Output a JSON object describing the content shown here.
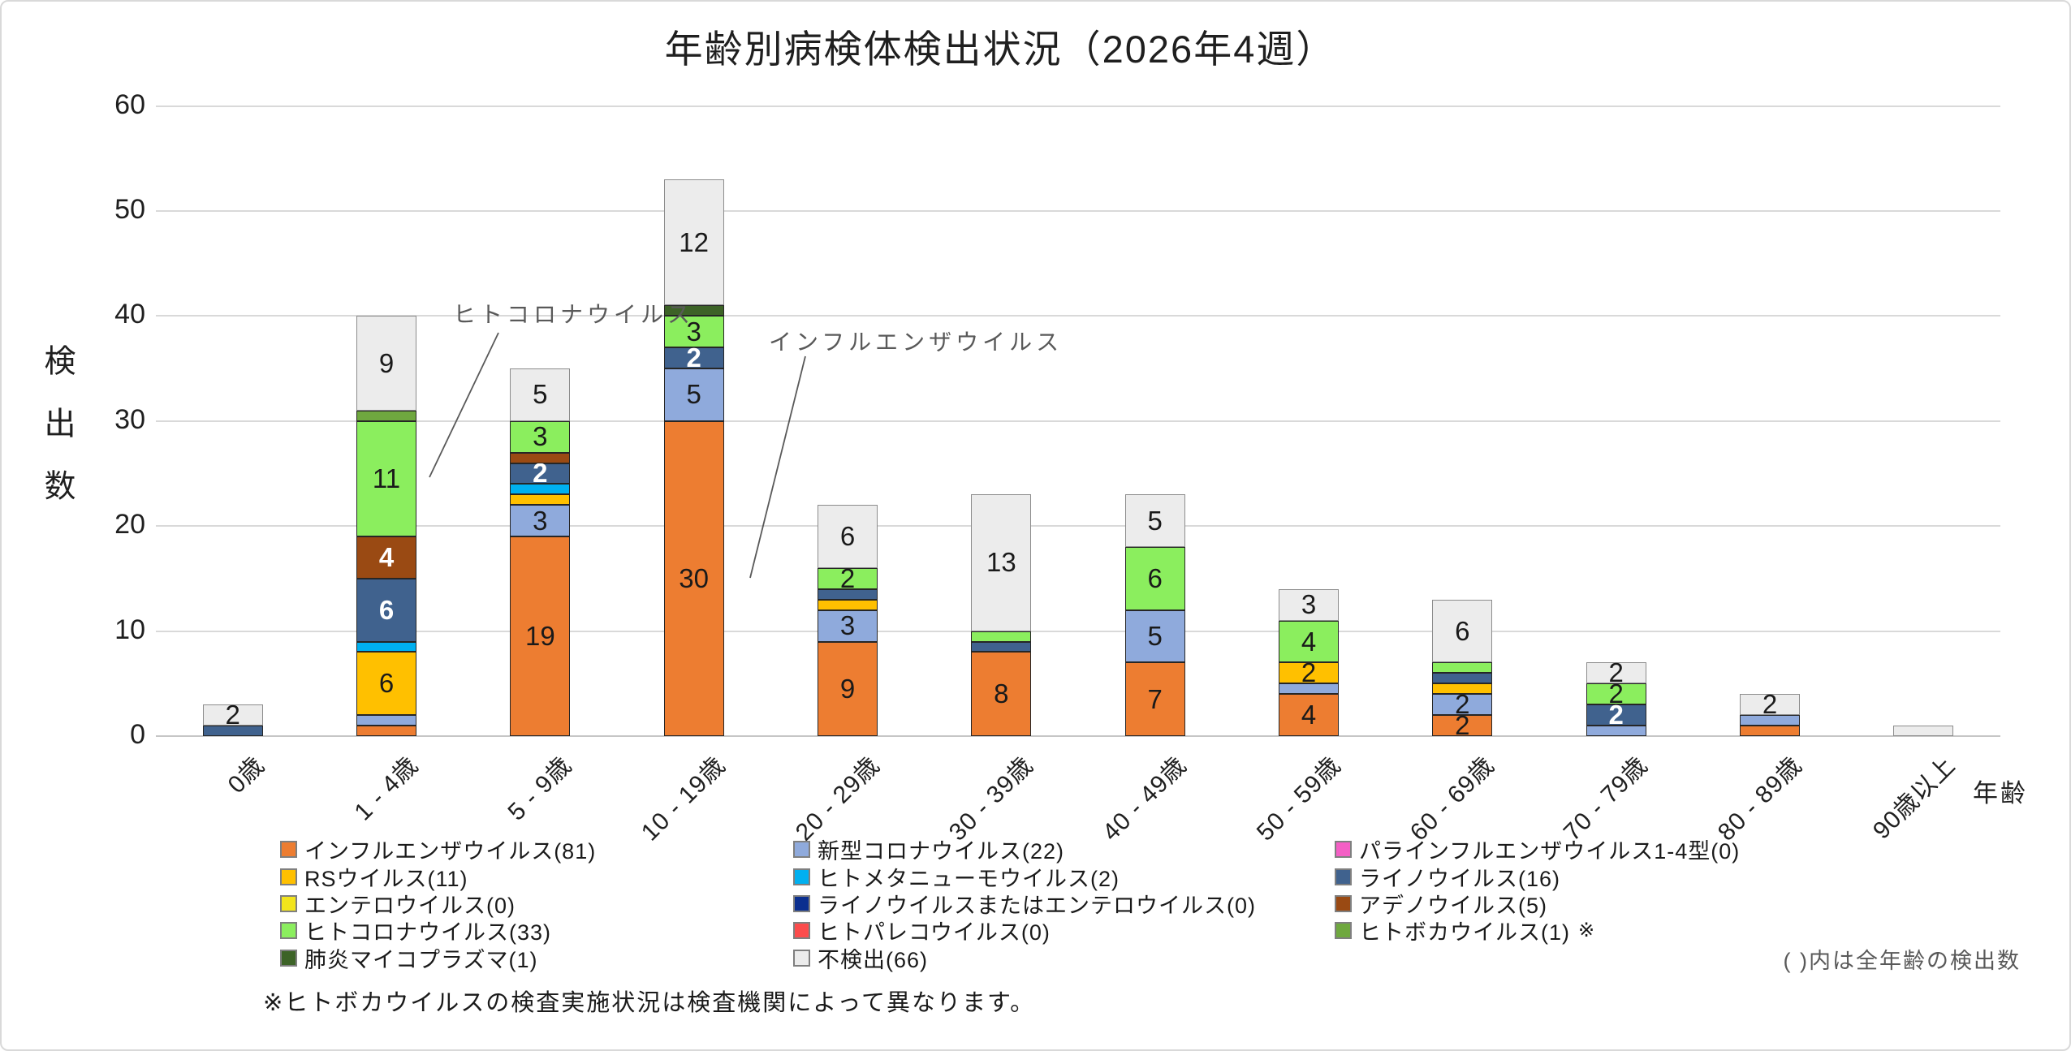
{
  "title": "年齢別病検体検出状況（2026年4週）",
  "y_axis": {
    "title": "検出数",
    "ticks": [
      0,
      10,
      20,
      30,
      40,
      50,
      60
    ],
    "max": 60
  },
  "x_axis": {
    "title": "年齢"
  },
  "notes": {
    "footnote": "※ヒトボカウイルスの検査実施状況は検査機関によって異なります。",
    "paren_note": "( )内は全年齢の検出数"
  },
  "annotations": [
    {
      "text": "ヒトコロナウイルス"
    },
    {
      "text": "インフルエンザウイルス"
    }
  ],
  "chart_data": {
    "type": "bar",
    "stacked": true,
    "title": "年齢別病検体検出状況（2026年4週）",
    "ylabel": "検出数",
    "xlabel": "年齢",
    "ylim": [
      0,
      60
    ],
    "grid": true,
    "legend_position": "bottom",
    "label_rule": "segment values >= 2 are labeled",
    "categories": [
      "0歳",
      "1 - 4歳",
      "5 - 9歳",
      "10 - 19歳",
      "20 - 29歳",
      "30 - 39歳",
      "40 - 49歳",
      "50 - 59歳",
      "60 - 69歳",
      "70 - 79歳",
      "80 - 89歳",
      "90歳以上"
    ],
    "series": [
      {
        "name": "インフルエンザウイルス",
        "total": 81,
        "color": "#ED7D31",
        "values": [
          0,
          1,
          19,
          30,
          9,
          8,
          7,
          4,
          2,
          0,
          1,
          0
        ]
      },
      {
        "name": "新型コロナウイルス",
        "total": 22,
        "color": "#8FAADC",
        "values": [
          0,
          1,
          3,
          5,
          3,
          0,
          5,
          1,
          2,
          1,
          1,
          0
        ]
      },
      {
        "name": "パラインフルエンザウイルス1-4型",
        "total": 0,
        "color": "#F45FC5",
        "values": [
          0,
          0,
          0,
          0,
          0,
          0,
          0,
          0,
          0,
          0,
          0,
          0
        ]
      },
      {
        "name": "RSウイルス",
        "total": 11,
        "color": "#FFC000",
        "values": [
          0,
          6,
          1,
          0,
          1,
          0,
          0,
          2,
          1,
          0,
          0,
          0
        ]
      },
      {
        "name": "ヒトメタニューモウイルス",
        "total": 2,
        "color": "#00B0F0",
        "values": [
          0,
          1,
          1,
          0,
          0,
          0,
          0,
          0,
          0,
          0,
          0,
          0
        ]
      },
      {
        "name": "ライノウイルス",
        "total": 16,
        "color": "#40628E",
        "white_label": true,
        "values": [
          1,
          6,
          2,
          2,
          1,
          1,
          0,
          0,
          1,
          2,
          0,
          0
        ]
      },
      {
        "name": "エンテロウイルス",
        "total": 0,
        "color": "#F2E41C",
        "values": [
          0,
          0,
          0,
          0,
          0,
          0,
          0,
          0,
          0,
          0,
          0,
          0
        ]
      },
      {
        "name": "ライノウイルスまたはエンテロウイルス",
        "total": 0,
        "color": "#0B2F8F",
        "white_label": true,
        "values": [
          0,
          0,
          0,
          0,
          0,
          0,
          0,
          0,
          0,
          0,
          0,
          0
        ]
      },
      {
        "name": "アデノウイルス",
        "total": 5,
        "color": "#9A4A13",
        "white_label": true,
        "values": [
          0,
          4,
          1,
          0,
          0,
          0,
          0,
          0,
          0,
          0,
          0,
          0
        ]
      },
      {
        "name": "ヒトコロナウイルス",
        "total": 33,
        "color": "#8BEE5E",
        "values": [
          0,
          11,
          3,
          3,
          2,
          1,
          6,
          4,
          1,
          2,
          0,
          0
        ]
      },
      {
        "name": "ヒトパレコウイルス",
        "total": 0,
        "color": "#FB4C4C",
        "values": [
          0,
          0,
          0,
          0,
          0,
          0,
          0,
          0,
          0,
          0,
          0,
          0
        ]
      },
      {
        "name": "ヒトボカウイルス",
        "total": 1,
        "color": "#6FA83F",
        "note_mark": "※",
        "values": [
          0,
          1,
          0,
          0,
          0,
          0,
          0,
          0,
          0,
          0,
          0,
          0
        ]
      },
      {
        "name": "肺炎マイコプラズマ",
        "total": 1,
        "color": "#3D6327",
        "white_label": true,
        "values": [
          0,
          0,
          0,
          1,
          0,
          0,
          0,
          0,
          0,
          0,
          0,
          0
        ]
      },
      {
        "name": "不検出",
        "total": 66,
        "color": "#ECECEC",
        "border": "#8C8C8C",
        "values": [
          2,
          9,
          5,
          12,
          6,
          13,
          5,
          3,
          6,
          2,
          2,
          1
        ]
      }
    ],
    "legend_columns": [
      [
        0,
        3,
        6,
        9,
        12
      ],
      [
        1,
        4,
        7,
        10,
        13
      ],
      [
        2,
        5,
        8,
        11
      ]
    ]
  }
}
